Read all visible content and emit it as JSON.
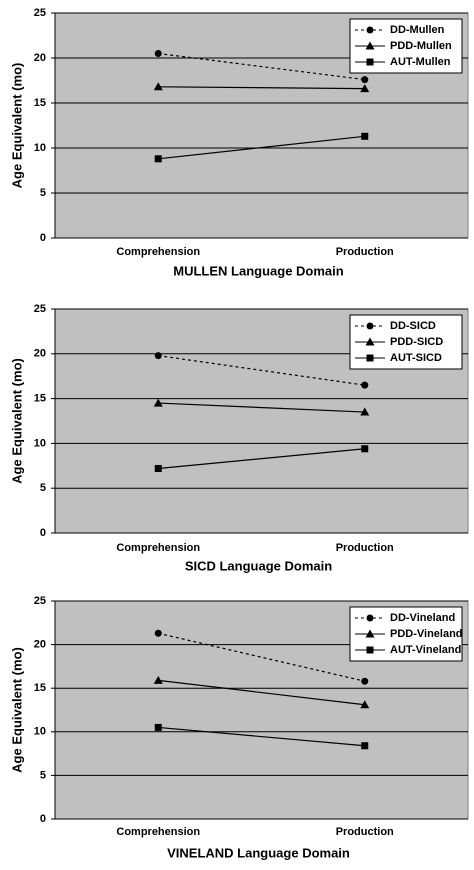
{
  "chart_data": [
    {
      "type": "line",
      "x_label": "MULLEN Language Domain",
      "y_label": "Age Equivalent (mo)",
      "categories": [
        "Comprehension",
        "Production"
      ],
      "series": [
        {
          "name": "DD-Mullen",
          "color": "#000000",
          "marker": "circle",
          "dashed": true,
          "values": [
            20.5,
            17.6
          ]
        },
        {
          "name": "PDD-Mullen",
          "color": "#000000",
          "marker": "triangle",
          "dashed": false,
          "values": [
            16.8,
            16.6
          ]
        },
        {
          "name": "AUT-Mullen",
          "color": "#000000",
          "marker": "square",
          "dashed": false,
          "values": [
            8.8,
            11.3
          ]
        }
      ],
      "ylim": [
        0,
        25
      ],
      "yticks": [
        0,
        5,
        10,
        15,
        20,
        25
      ],
      "grid": true,
      "legend": "upper right"
    },
    {
      "type": "line",
      "x_label": "SICD Language Domain",
      "y_label": "Age Equivalent (mo)",
      "categories": [
        "Comprehension",
        "Production"
      ],
      "series": [
        {
          "name": "DD-SICD",
          "color": "#000000",
          "marker": "circle",
          "dashed": true,
          "values": [
            19.8,
            16.5
          ]
        },
        {
          "name": "PDD-SICD",
          "color": "#000000",
          "marker": "triangle",
          "dashed": false,
          "values": [
            14.5,
            13.5
          ]
        },
        {
          "name": "AUT-SICD",
          "color": "#000000",
          "marker": "square",
          "dashed": false,
          "values": [
            7.2,
            9.4
          ]
        }
      ],
      "ylim": [
        0,
        25
      ],
      "yticks": [
        0,
        5,
        10,
        15,
        20,
        25
      ],
      "grid": true,
      "legend": "upper right"
    },
    {
      "type": "line",
      "x_label": "VINELAND Language Domain",
      "y_label": "Age Equivalent (mo)",
      "categories": [
        "Comprehension",
        "Production"
      ],
      "series": [
        {
          "name": "DD-Vineland",
          "color": "#000000",
          "marker": "circle",
          "dashed": true,
          "values": [
            21.3,
            15.8
          ]
        },
        {
          "name": "PDD-Vineland",
          "color": "#000000",
          "marker": "triangle",
          "dashed": false,
          "values": [
            15.9,
            13.1
          ]
        },
        {
          "name": "AUT-Vineland",
          "color": "#000000",
          "marker": "square",
          "dashed": false,
          "values": [
            10.5,
            8.4
          ]
        }
      ],
      "ylim": [
        0,
        25
      ],
      "yticks": [
        0,
        5,
        10,
        15,
        20,
        25
      ],
      "grid": true,
      "legend": "upper right"
    }
  ]
}
